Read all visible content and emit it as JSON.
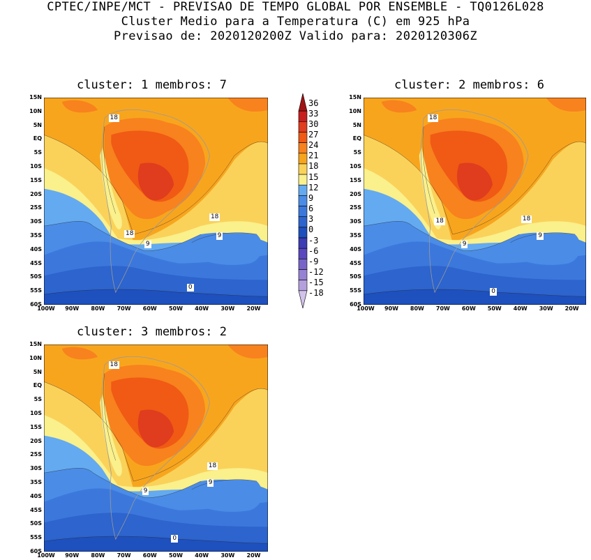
{
  "header": {
    "line1": "CPTEC/INPE/MCT - PREVISAO DE TEMPO GLOBAL POR ENSEMBLE - TQ0126L028",
    "line2": "Cluster Medio para a Temperatura (C) em 925 hPa",
    "line3": "Previsao de: 2020120200Z   Valido para: 2020120306Z"
  },
  "axes": {
    "lat_labels": [
      "15N",
      "10N",
      "5N",
      "EQ",
      "5S",
      "10S",
      "15S",
      "20S",
      "25S",
      "30S",
      "35S",
      "40S",
      "45S",
      "50S",
      "55S",
      "60S"
    ],
    "lon_labels": [
      "100W",
      "90W",
      "80W",
      "70W",
      "60W",
      "50W",
      "40W",
      "30W",
      "20W"
    ]
  },
  "panels": [
    {
      "title": "cluster: 1   membros: 7",
      "contour_labels": [
        "18",
        "18",
        "18",
        "9",
        "9",
        "0"
      ]
    },
    {
      "title": "cluster: 2   membros: 6",
      "contour_labels": [
        "18",
        "18",
        "18",
        "9",
        "9",
        "0"
      ]
    },
    {
      "title": "cluster: 3   membros: 2",
      "contour_labels": [
        "18",
        "18",
        "9",
        "9",
        "0"
      ]
    }
  ],
  "colorbar": {
    "levels": [
      "36",
      "33",
      "30",
      "27",
      "24",
      "21",
      "18",
      "15",
      "12",
      "9",
      "6",
      "3",
      "0",
      "-3",
      "-6",
      "-9",
      "-12",
      "-15",
      "-18"
    ],
    "colors": [
      "#a01414",
      "#c81e1e",
      "#e03c1e",
      "#f05a14",
      "#f8821e",
      "#f8a51e",
      "#fad25a",
      "#faf08c",
      "#64aaf0",
      "#4b8ce6",
      "#3c78dc",
      "#2d64cd",
      "#1e50be",
      "#3c3cb4",
      "#5a46be",
      "#7864c8",
      "#9682d2",
      "#b4a0dc",
      "#d2c3eb"
    ]
  }
}
